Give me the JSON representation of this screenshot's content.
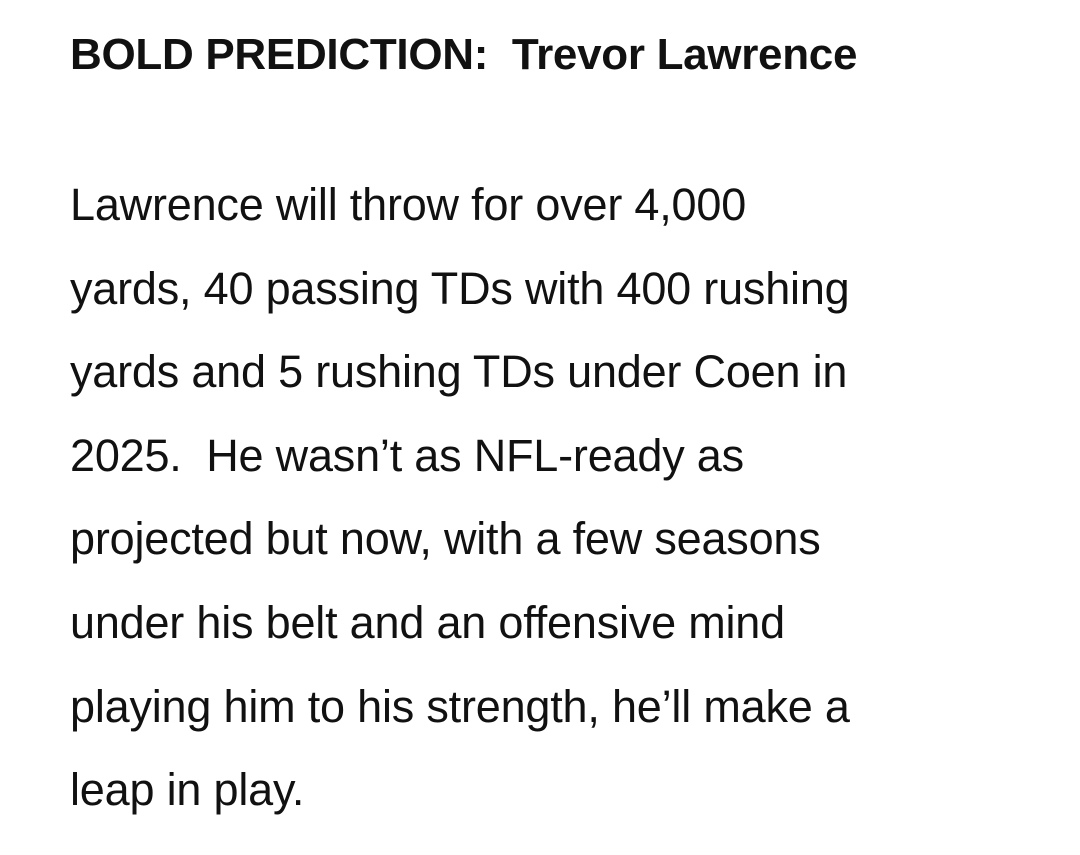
{
  "heading": "BOLD PREDICTION:  Trevor Lawrence",
  "body": {
    "lines": [
      "Lawrence will throw for over 4,000",
      "yards, 40 passing TDs with 400 rushing",
      "yards and 5 rushing TDs under Coen in",
      "2025.  He wasn’t as NFL-ready as",
      "projected but now, with a few seasons",
      "under his belt and an offensive mind",
      "playing him to his strength, he’ll make a",
      "leap in play."
    ]
  }
}
